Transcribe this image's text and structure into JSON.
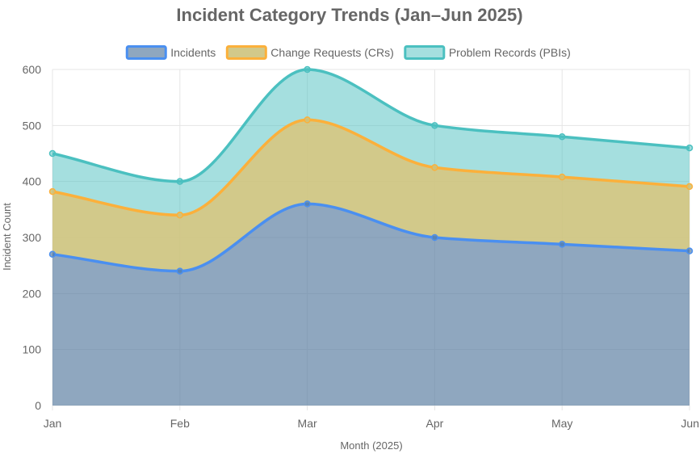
{
  "chart_data": {
    "type": "area",
    "stacked": true,
    "title": "Incident Category Trends (Jan–Jun 2025)",
    "xlabel": "Month (2025)",
    "ylabel": "Incident Count",
    "categories": [
      "Jan",
      "Feb",
      "Mar",
      "Apr",
      "May",
      "Jun"
    ],
    "ylim": [
      0,
      600
    ],
    "yticks": [
      0,
      100,
      200,
      300,
      400,
      500,
      600
    ],
    "grid": true,
    "legend_position": "top",
    "series": [
      {
        "name": "Incidents",
        "values": [
          270,
          240,
          360,
          300,
          288,
          276
        ],
        "color": "#4a8ff0",
        "fill": "rgba(90,126,160,0.68)"
      },
      {
        "name": "Change Requests (CRs)",
        "values": [
          112,
          100,
          150,
          125,
          120,
          115
        ],
        "color": "#fbb03b",
        "fill": "rgba(205,195,125,0.9)"
      },
      {
        "name": "Problem Records (PBIs)",
        "values": [
          68,
          60,
          90,
          75,
          72,
          69
        ],
        "color": "#4bc0c0",
        "fill": "rgba(75,192,192,0.5)"
      }
    ]
  }
}
